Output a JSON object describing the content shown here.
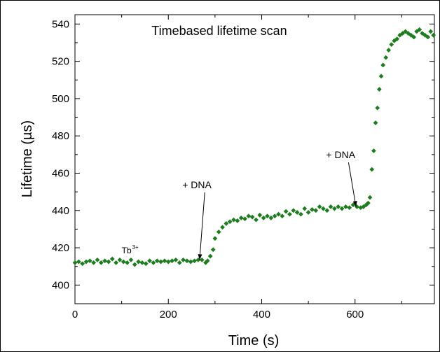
{
  "chart_data": {
    "type": "scatter",
    "title": "Timebased lifetime scan",
    "xlabel": "Time (s)",
    "ylabel": "Lifetime (µs)",
    "xlim": [
      0,
      770
    ],
    "ylim": [
      390,
      545
    ],
    "xticks": [
      0,
      200,
      400,
      600
    ],
    "yticks": [
      400,
      420,
      440,
      460,
      480,
      500,
      520,
      540
    ],
    "marker_color": "#1e7d1e",
    "grid": false,
    "annotations": [
      {
        "text": "Tb",
        "superscript": "3+",
        "x": 100,
        "y": 417
      },
      {
        "text": "+ DNA",
        "x": 230,
        "y": 452,
        "arrow_to": [
          267,
          413.5
        ]
      },
      {
        "text": "+ DNA",
        "x": 538,
        "y": 468,
        "arrow_to": [
          602,
          442
        ]
      }
    ],
    "series": [
      {
        "x": [
          0,
          8,
          16,
          24,
          32,
          40,
          48,
          56,
          64,
          72,
          80,
          88,
          96,
          104,
          112,
          120,
          128,
          136,
          144,
          152,
          160,
          168,
          176,
          184,
          192,
          200,
          208,
          216,
          224,
          232,
          240,
          248,
          256,
          264,
          272,
          280,
          284,
          290,
          296,
          300,
          308,
          316,
          324,
          332,
          340,
          348,
          356,
          364,
          372,
          380,
          388,
          396,
          404,
          412,
          420,
          428,
          436,
          444,
          452,
          460,
          468,
          476,
          484,
          492,
          500,
          508,
          516,
          524,
          532,
          540,
          548,
          556,
          564,
          572,
          580,
          588,
          596,
          604,
          612,
          618,
          624,
          628,
          632,
          636,
          640,
          644,
          648,
          652,
          656,
          660,
          666,
          672,
          678,
          684,
          690,
          696,
          702,
          708,
          714,
          720,
          726,
          732,
          738,
          744,
          750,
          756,
          762,
          768
        ],
        "y": [
          412,
          412.5,
          411.5,
          412.5,
          413,
          412,
          413.5,
          412,
          413,
          412.5,
          414,
          412,
          413.5,
          412.5,
          412,
          413.5,
          411,
          412.5,
          412,
          411.5,
          413,
          412,
          413,
          412.5,
          413,
          412.5,
          413,
          413.5,
          412,
          413.5,
          413,
          412.5,
          413,
          413.5,
          413.5,
          412,
          413,
          415.5,
          419,
          425,
          428.5,
          431,
          433,
          434,
          435,
          434.5,
          436,
          435.5,
          437,
          436.5,
          435,
          437.5,
          436,
          437,
          436,
          437,
          438,
          437,
          439.5,
          438,
          440,
          439,
          438,
          441,
          439,
          440.5,
          440,
          442,
          441,
          440,
          442,
          441,
          442,
          441,
          442,
          441.5,
          443,
          442,
          441.5,
          442,
          443,
          444,
          447,
          462,
          472,
          487,
          495,
          505,
          512,
          518,
          522,
          526,
          529,
          531,
          532,
          534,
          535,
          536,
          535,
          534,
          533,
          536,
          537,
          535,
          534,
          533,
          536,
          534
        ]
      }
    ]
  }
}
